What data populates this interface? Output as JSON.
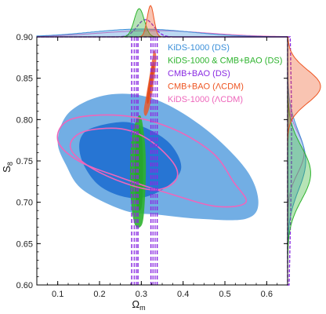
{
  "chart_data": {
    "type": "contour",
    "title": "",
    "xlabel": "Ω",
    "xlabel_sub": "m",
    "ylabel": "S",
    "ylabel_sub": "8",
    "xlim": [
      0.05,
      0.65
    ],
    "ylim": [
      0.6,
      0.9
    ],
    "xticks": [
      "0.1",
      "0.2",
      "0.3",
      "0.4",
      "0.5",
      "0.6"
    ],
    "yticks": [
      "0.60",
      "0.65",
      "0.70",
      "0.75",
      "0.80",
      "0.85",
      "0.90"
    ],
    "legend_position": "top-right",
    "grid": false,
    "series": [
      {
        "name": "KiDS-1000 (DS)",
        "color": "#3b8fd9",
        "style": "filled",
        "outer_contour": [
          [
            0.12,
            0.745
          ],
          [
            0.1,
            0.775
          ],
          [
            0.13,
            0.81
          ],
          [
            0.22,
            0.83
          ],
          [
            0.33,
            0.825
          ],
          [
            0.45,
            0.79
          ],
          [
            0.55,
            0.74
          ],
          [
            0.58,
            0.7
          ],
          [
            0.55,
            0.68
          ],
          [
            0.44,
            0.68
          ],
          [
            0.34,
            0.685
          ],
          [
            0.26,
            0.69
          ],
          [
            0.16,
            0.715
          ]
        ],
        "inner_contour": [
          [
            0.155,
            0.755
          ],
          [
            0.165,
            0.785
          ],
          [
            0.25,
            0.797
          ],
          [
            0.31,
            0.79
          ],
          [
            0.37,
            0.77
          ],
          [
            0.395,
            0.74
          ],
          [
            0.35,
            0.715
          ],
          [
            0.28,
            0.705
          ],
          [
            0.2,
            0.72
          ]
        ]
      },
      {
        "name": "KiDS-1000 & CMB+BAO (DS)",
        "color": "#2db32d",
        "style": "filled",
        "outer_contour": [
          [
            0.297,
            0.805
          ],
          [
            0.282,
            0.79
          ],
          [
            0.274,
            0.76
          ],
          [
            0.274,
            0.71
          ],
          [
            0.283,
            0.675
          ],
          [
            0.297,
            0.67
          ],
          [
            0.306,
            0.685
          ],
          [
            0.311,
            0.74
          ],
          [
            0.307,
            0.78
          ]
        ],
        "inner_contour": [
          [
            0.296,
            0.79
          ],
          [
            0.287,
            0.77
          ],
          [
            0.284,
            0.73
          ],
          [
            0.288,
            0.7
          ],
          [
            0.296,
            0.69
          ],
          [
            0.302,
            0.7
          ],
          [
            0.304,
            0.74
          ],
          [
            0.302,
            0.775
          ]
        ]
      },
      {
        "name": "CMB+BAO (DS)",
        "color": "#8a2be2",
        "style": "dashed",
        "outer_contour_x": [
          0.277,
          0.292
        ],
        "inner_contour_x": [
          0.283,
          0.288
        ],
        "second_outer_x": [
          0.323,
          0.338
        ],
        "second_inner_x": [
          0.328,
          0.333
        ]
      },
      {
        "name": "CMB+BAO (ΛCDM)",
        "color": "#ee5522",
        "style": "filled",
        "outer_contour": [
          [
            0.33,
            0.883
          ],
          [
            0.322,
            0.86
          ],
          [
            0.312,
            0.83
          ],
          [
            0.306,
            0.81
          ],
          [
            0.312,
            0.805
          ],
          [
            0.322,
            0.82
          ],
          [
            0.331,
            0.85
          ],
          [
            0.336,
            0.875
          ]
        ],
        "inner_contour": [
          [
            0.328,
            0.87
          ],
          [
            0.32,
            0.85
          ],
          [
            0.313,
            0.825
          ],
          [
            0.317,
            0.82
          ],
          [
            0.325,
            0.84
          ],
          [
            0.331,
            0.862
          ]
        ]
      },
      {
        "name": "KiDS-1000 (ΛCDM)",
        "color": "#ee66bb",
        "style": "outline",
        "outer_contour": [
          [
            0.1,
            0.775
          ],
          [
            0.13,
            0.8
          ],
          [
            0.25,
            0.805
          ],
          [
            0.37,
            0.79
          ],
          [
            0.47,
            0.76
          ],
          [
            0.52,
            0.725
          ],
          [
            0.55,
            0.7
          ],
          [
            0.48,
            0.695
          ],
          [
            0.37,
            0.71
          ],
          [
            0.25,
            0.73
          ],
          [
            0.15,
            0.75
          ]
        ],
        "inner_contour": [
          [
            0.13,
            0.767
          ],
          [
            0.16,
            0.785
          ],
          [
            0.25,
            0.789
          ],
          [
            0.32,
            0.775
          ],
          [
            0.38,
            0.745
          ],
          [
            0.38,
            0.725
          ],
          [
            0.33,
            0.715
          ],
          [
            0.25,
            0.725
          ],
          [
            0.17,
            0.745
          ]
        ]
      }
    ],
    "marginal_x": [
      {
        "series": "KiDS-1000 (DS)",
        "center": 0.3,
        "width": 0.12,
        "peak": 0.25
      },
      {
        "series": "KiDS-1000 & CMB+BAO (DS)",
        "center": 0.295,
        "width": 0.012,
        "peak": 0.9
      },
      {
        "series": "CMB+BAO (DS)",
        "center": 0.31,
        "width": 0.02,
        "peak": 0.55
      },
      {
        "series": "CMB+BAO (ΛCDM)",
        "center": 0.322,
        "width": 0.008,
        "peak": 1.0
      },
      {
        "series": "KiDS-1000 (ΛCDM)",
        "center": 0.33,
        "width": 0.13,
        "peak": 0.2
      }
    ],
    "marginal_y": [
      {
        "series": "KiDS-1000 (DS)",
        "center": 0.75,
        "width": 0.035,
        "peak": 0.55
      },
      {
        "series": "KiDS-1000 & CMB+BAO (DS)",
        "center": 0.735,
        "width": 0.032,
        "peak": 0.7
      },
      {
        "series": "CMB+BAO (DS)",
        "center": 0.78,
        "width": 0.13,
        "peak": 0.12
      },
      {
        "series": "CMB+BAO (ΛCDM)",
        "center": 0.84,
        "width": 0.02,
        "peak": 1.0
      },
      {
        "series": "KiDS-1000 (ΛCDM)",
        "center": 0.76,
        "width": 0.025,
        "peak": 0.5
      }
    ]
  }
}
